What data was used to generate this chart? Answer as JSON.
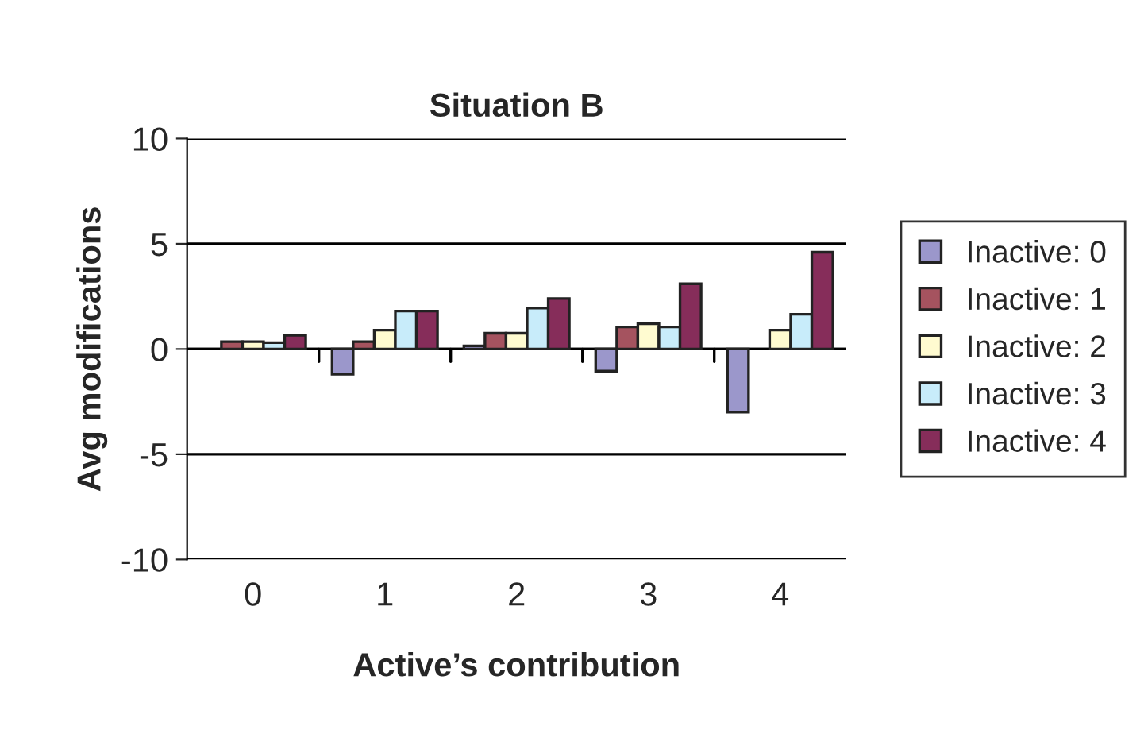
{
  "chart_data": {
    "type": "bar",
    "title": "Situation B",
    "xlabel": "Active’s contribution",
    "ylabel": "Avg modifications",
    "categories": [
      "0",
      "1",
      "2",
      "3",
      "4"
    ],
    "series": [
      {
        "name": "Inactive: 0",
        "color": "#9b97cb",
        "values": [
          null,
          -1.2,
          0.15,
          -1.05,
          -3.0
        ]
      },
      {
        "name": "Inactive: 1",
        "color": "#a5535f",
        "values": [
          0.35,
          0.35,
          0.75,
          1.05,
          null
        ]
      },
      {
        "name": "Inactive: 2",
        "color": "#fffbd0",
        "values": [
          0.35,
          0.9,
          0.75,
          1.2,
          0.9
        ]
      },
      {
        "name": "Inactive: 3",
        "color": "#c8ecfa",
        "values": [
          0.3,
          1.8,
          1.95,
          1.05,
          1.65
        ]
      },
      {
        "name": "Inactive: 4",
        "color": "#862d5a",
        "values": [
          0.65,
          1.8,
          2.4,
          3.1,
          4.6
        ]
      }
    ],
    "ylim": [
      -10,
      10
    ],
    "yticks": [
      -10,
      -5,
      0,
      5,
      10
    ],
    "grid": "y",
    "legend": "right"
  }
}
